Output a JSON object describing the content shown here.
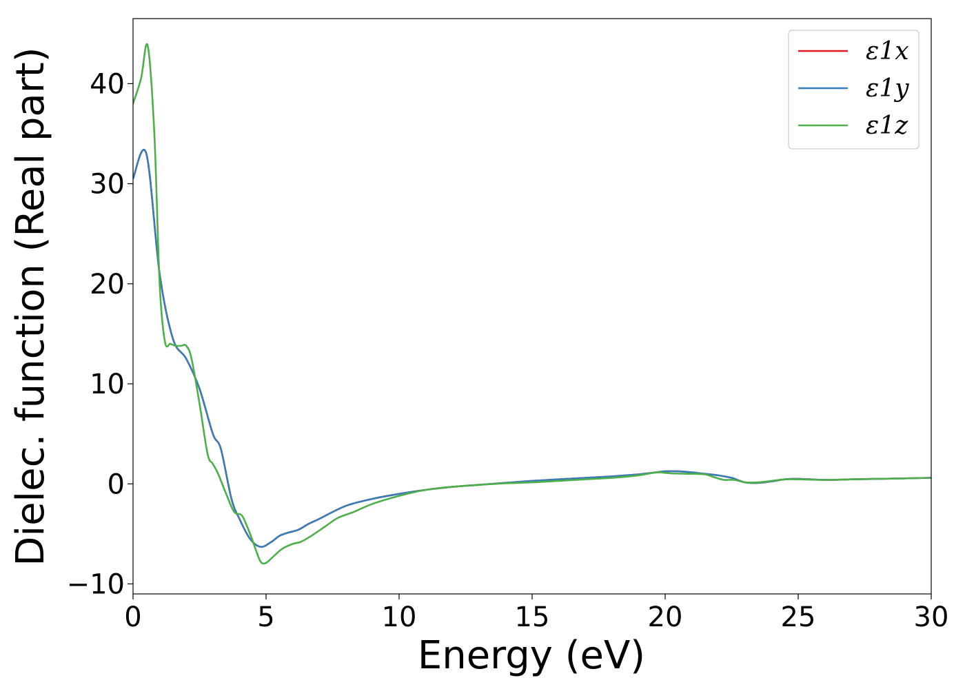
{
  "chart_data": {
    "type": "line",
    "title": "",
    "xlabel": "Energy (eV)",
    "ylabel": "Dielec. function (Real part)",
    "xlim": [
      0,
      30
    ],
    "ylim": [
      -11,
      46.5
    ],
    "xticks": [
      0,
      5,
      10,
      15,
      20,
      25,
      30
    ],
    "xtick_labels": [
      "0",
      "5",
      "10",
      "15",
      "20",
      "25",
      "30"
    ],
    "yticks": [
      -10,
      0,
      10,
      20,
      30,
      40
    ],
    "ytick_labels": [
      "−10",
      "0",
      "10",
      "20",
      "30",
      "40"
    ],
    "grid": false,
    "legend_position": "top-right",
    "series": [
      {
        "name": "ε1x",
        "color": "#e41a1c",
        "x": [
          0,
          0.5,
          1.0,
          1.5,
          2.0,
          2.5,
          3.0,
          3.3,
          3.7,
          4.0,
          4.4,
          4.8,
          5.2,
          5.5,
          5.8,
          6.2,
          6.6,
          7.0,
          8.0,
          9.0,
          10.0,
          11.0,
          12.0,
          13.0,
          14.0,
          15.0,
          16.0,
          17.0,
          18.0,
          19.0,
          19.5,
          20.0,
          20.5,
          21.0,
          21.5,
          22.0,
          22.5,
          23.0,
          23.5,
          24.0,
          24.5,
          25.0,
          26.0,
          27.0,
          28.0,
          29.0,
          30.0
        ],
        "y": [
          30.5,
          33.0,
          21.0,
          14.5,
          12.5,
          9.5,
          5.0,
          3.5,
          -1.5,
          -3.5,
          -5.5,
          -6.3,
          -5.8,
          -5.2,
          -4.9,
          -4.6,
          -4.0,
          -3.5,
          -2.2,
          -1.5,
          -1.0,
          -0.6,
          -0.3,
          -0.1,
          0.1,
          0.3,
          0.45,
          0.6,
          0.75,
          0.95,
          1.1,
          1.25,
          1.25,
          1.15,
          1.0,
          0.85,
          0.6,
          0.15,
          0.1,
          0.25,
          0.45,
          0.5,
          0.4,
          0.45,
          0.5,
          0.55,
          0.6
        ]
      },
      {
        "name": "ε1y",
        "color": "#377eb8",
        "x": [
          0,
          0.5,
          1.0,
          1.5,
          2.0,
          2.5,
          3.0,
          3.3,
          3.7,
          4.0,
          4.4,
          4.8,
          5.2,
          5.5,
          5.8,
          6.2,
          6.6,
          7.0,
          8.0,
          9.0,
          10.0,
          11.0,
          12.0,
          13.0,
          14.0,
          15.0,
          16.0,
          17.0,
          18.0,
          19.0,
          19.5,
          20.0,
          20.5,
          21.0,
          21.5,
          22.0,
          22.5,
          23.0,
          23.5,
          24.0,
          24.5,
          25.0,
          26.0,
          27.0,
          28.0,
          29.0,
          30.0
        ],
        "y": [
          30.5,
          33.0,
          21.0,
          14.5,
          12.5,
          9.5,
          5.0,
          3.5,
          -1.5,
          -3.5,
          -5.5,
          -6.3,
          -5.8,
          -5.2,
          -4.9,
          -4.6,
          -4.0,
          -3.5,
          -2.2,
          -1.5,
          -1.0,
          -0.6,
          -0.3,
          -0.1,
          0.1,
          0.3,
          0.45,
          0.6,
          0.75,
          0.95,
          1.1,
          1.25,
          1.25,
          1.15,
          1.0,
          0.85,
          0.6,
          0.15,
          0.1,
          0.25,
          0.45,
          0.5,
          0.4,
          0.45,
          0.5,
          0.55,
          0.6
        ]
      },
      {
        "name": "ε1z",
        "color": "#4daf4a",
        "x": [
          0,
          0.3,
          0.55,
          0.8,
          1.0,
          1.2,
          1.4,
          1.6,
          1.8,
          2.0,
          2.2,
          2.5,
          2.8,
          3.0,
          3.2,
          3.5,
          3.8,
          4.1,
          4.4,
          4.6,
          4.8,
          5.0,
          5.3,
          5.6,
          6.0,
          6.3,
          6.7,
          7.2,
          7.7,
          8.3,
          9.0,
          10.0,
          11.0,
          12.0,
          13.0,
          14.0,
          15.0,
          16.0,
          17.0,
          18.0,
          19.0,
          19.7,
          20.2,
          21.0,
          21.5,
          21.8,
          22.2,
          22.6,
          23.0,
          23.5,
          24.0,
          24.5,
          25.0,
          26.0,
          27.0,
          28.0,
          29.0,
          30.0
        ],
        "y": [
          38.0,
          40.5,
          43.8,
          35.0,
          20.0,
          14.2,
          14.0,
          13.8,
          13.8,
          13.8,
          12.5,
          8.0,
          3.0,
          2.0,
          1.0,
          -1.0,
          -2.8,
          -3.2,
          -5.0,
          -6.5,
          -7.8,
          -7.9,
          -7.2,
          -6.5,
          -6.0,
          -5.8,
          -5.2,
          -4.3,
          -3.4,
          -2.8,
          -2.0,
          -1.2,
          -0.6,
          -0.3,
          -0.1,
          0.05,
          0.15,
          0.3,
          0.45,
          0.6,
          0.85,
          1.15,
          1.05,
          1.0,
          0.95,
          0.7,
          0.4,
          0.4,
          0.15,
          0.15,
          0.3,
          0.45,
          0.45,
          0.4,
          0.45,
          0.5,
          0.55,
          0.6
        ]
      }
    ]
  }
}
